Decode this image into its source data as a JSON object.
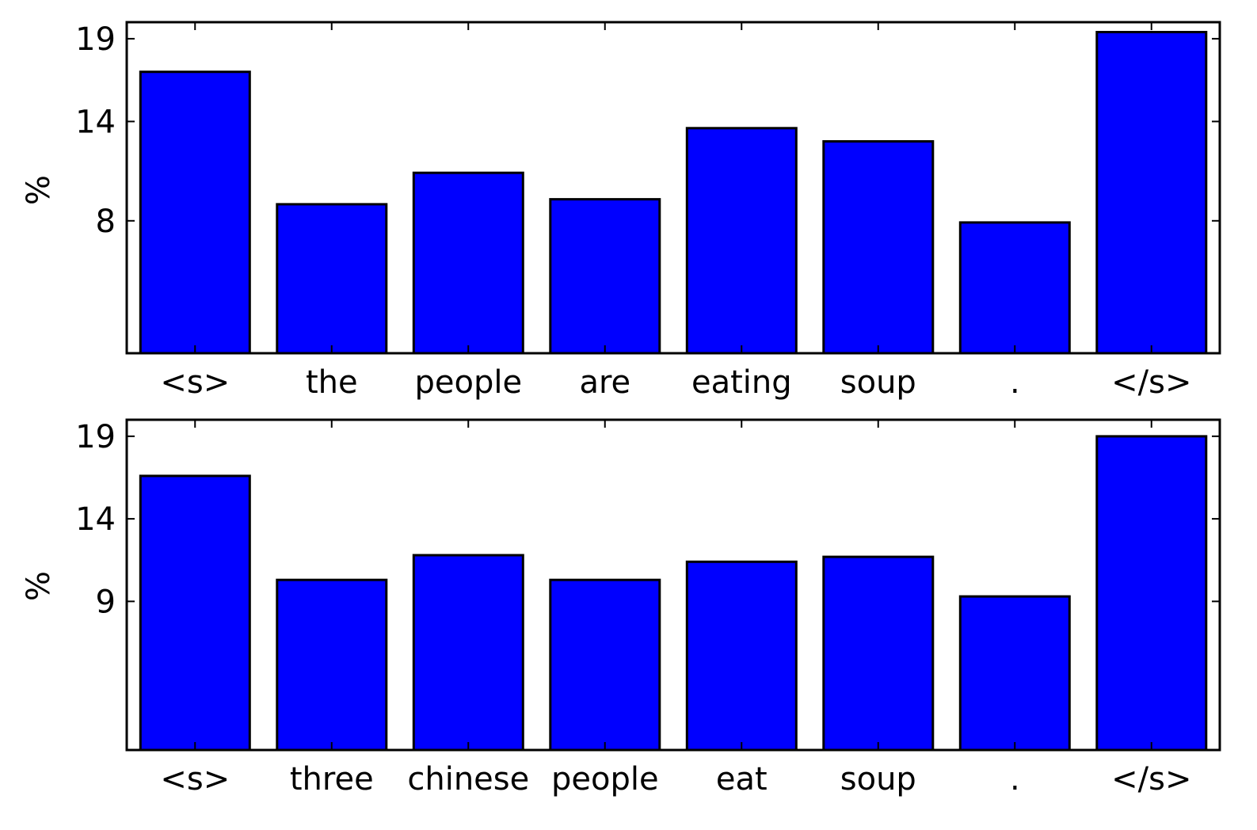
{
  "chart_data": [
    {
      "type": "bar",
      "categories": [
        "<s>",
        "the",
        "people",
        "are",
        "eating",
        "soup",
        ".",
        "</s>"
      ],
      "values": [
        17,
        9,
        10.9,
        9.3,
        13.6,
        12.8,
        7.9,
        19.4
      ],
      "title": "",
      "xlabel": "",
      "ylabel": "%",
      "yticks": [
        8,
        14,
        19
      ],
      "ylim": [
        0,
        20
      ],
      "grid": false,
      "bar_color": "#0000ff"
    },
    {
      "type": "bar",
      "categories": [
        "<s>",
        "three",
        "chinese",
        "people",
        "eat",
        "soup",
        ".",
        "</s>"
      ],
      "values": [
        16.6,
        10.3,
        11.8,
        10.3,
        11.4,
        11.7,
        9.3,
        19
      ],
      "title": "",
      "xlabel": "",
      "ylabel": "%",
      "yticks": [
        9,
        14,
        19
      ],
      "ylim": [
        0,
        20
      ],
      "grid": false,
      "bar_color": "#0000ff"
    }
  ]
}
